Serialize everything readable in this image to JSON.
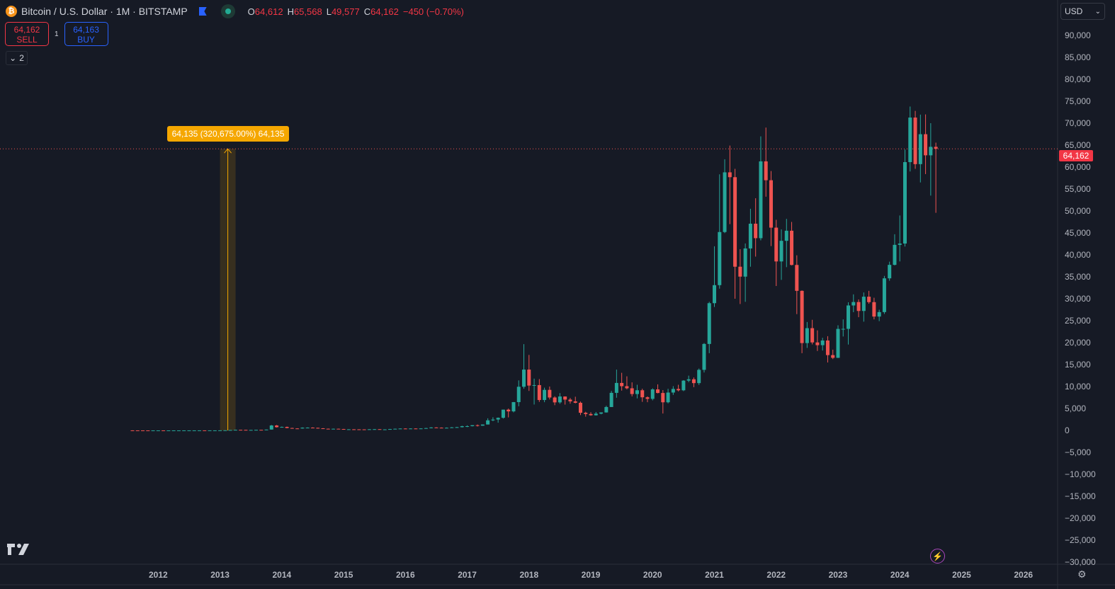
{
  "header": {
    "symbol_icon": "bitcoin-icon",
    "title": "Bitcoin / U.S. Dollar · 1M · BITSTAMP",
    "ohlc": {
      "o_label": "O",
      "o": "64,612",
      "h_label": "H",
      "h": "65,568",
      "l_label": "L",
      "l": "49,577",
      "c_label": "C",
      "c": "64,162",
      "change": "−450 (−0.70%)"
    }
  },
  "trade": {
    "sell_price": "64,162",
    "sell_label": "SELL",
    "quantity": "1",
    "buy_price": "64,163",
    "buy_label": "BUY"
  },
  "indicators_toggle": {
    "count": "2"
  },
  "currency": {
    "selected": "USD"
  },
  "measure_label": "64,135 (320,675.00%) 64,135",
  "last_price": "64,162",
  "colors": {
    "up": "#26a69a",
    "down": "#ef5350",
    "background": "#161a25",
    "measure": "#f5a700"
  },
  "chart_data": {
    "type": "candlestick",
    "interval": "1M",
    "start": "2011-08",
    "ylim": [
      -30000,
      90000
    ],
    "y_ticks": [
      90000,
      85000,
      80000,
      75000,
      70000,
      65000,
      60000,
      55000,
      50000,
      45000,
      40000,
      35000,
      30000,
      25000,
      20000,
      15000,
      10000,
      5000,
      0,
      -5000,
      -10000,
      -15000,
      -20000,
      -25000,
      -30000
    ],
    "y_tick_labels": [
      "90,000",
      "85,000",
      "80,000",
      "75,000",
      "70,000",
      "65,000",
      "60,000",
      "55,000",
      "50,000",
      "45,000",
      "40,000",
      "35,000",
      "30,000",
      "25,000",
      "20,000",
      "15,000",
      "10,000",
      "5,000",
      "0",
      "−5,000",
      "−10,000",
      "−15,000",
      "−20,000",
      "−25,000",
      "−30,000"
    ],
    "x_ticks": [
      "2012",
      "2013",
      "2014",
      "2015",
      "2016",
      "2017",
      "2018",
      "2019",
      "2020",
      "2021",
      "2022",
      "2023",
      "2024",
      "2025",
      "2026"
    ],
    "first_open": 10,
    "closes": [
      8.2,
      5.1,
      3.2,
      3.0,
      4.7,
      5.5,
      4.9,
      4.9,
      5.0,
      5.2,
      6.7,
      9.3,
      10.2,
      12.4,
      11.2,
      12.6,
      13.5,
      20,
      33,
      93,
      139,
      129,
      97,
      106,
      135,
      133,
      198,
      1130,
      732,
      800,
      550,
      450,
      445,
      630,
      640,
      585,
      480,
      385,
      338,
      378,
      320,
      217,
      254,
      244,
      236,
      230,
      263,
      284,
      230,
      236,
      314,
      377,
      430,
      368,
      437,
      416,
      448,
      531,
      673,
      624,
      575,
      609,
      698,
      742,
      963,
      970,
      1190,
      1080,
      1348,
      2300,
      2480,
      2875,
      4735,
      4340,
      6450,
      9950,
      13860,
      10220,
      10330,
      6930,
      9240,
      7500,
      6390,
      7730,
      7030,
      6620,
      6300,
      4020,
      3740,
      3450,
      3820,
      4100,
      5330,
      8560,
      10820,
      10080,
      9600,
      8290,
      9150,
      7550,
      7190,
      9350,
      8530,
      6410,
      8630,
      9450,
      9140,
      11350,
      11650,
      10780,
      13800,
      19700,
      28990,
      33100,
      45200,
      58800,
      57700,
      37300,
      35040,
      41460,
      47100,
      43800,
      61300,
      57000,
      46200,
      38500,
      43200,
      45500,
      37700,
      31800,
      19900,
      23300,
      20050,
      19420,
      20490,
      17160,
      16540,
      23130,
      23140,
      28470,
      29250,
      27220,
      30470,
      29230,
      25940,
      26960,
      34650,
      37720,
      42280,
      42580,
      61130,
      71280,
      60670,
      67490,
      62680,
      64612,
      64162
    ],
    "highs_from_2017": [
      1150,
      1200,
      1350,
      1350,
      2760,
      3000,
      2950,
      4750,
      4980,
      6480,
      11400,
      19660,
      17200,
      11800,
      11700,
      9750,
      10000,
      7780,
      8500,
      7760,
      7400,
      7680,
      6580,
      4250,
      4150,
      4200,
      4120,
      5620,
      9000,
      13860,
      13130,
      12330,
      10950,
      10400,
      9500,
      7750,
      9600,
      10500,
      9190,
      9480,
      10080,
      10400,
      11450,
      12480,
      12070,
      14100,
      19900,
      29300,
      41950,
      58350,
      61780,
      64900,
      59600,
      41300,
      42600,
      50500,
      52900,
      67000,
      69000,
      59100,
      47990,
      45800,
      48200,
      47500,
      39900,
      31900,
      24700,
      25200,
      22800,
      21100,
      21470,
      18400,
      23950,
      25300,
      29200,
      31000,
      29850,
      31430,
      31800,
      30230,
      27500,
      35200,
      38450,
      44700,
      48970,
      64000,
      73800,
      72800,
      71950,
      72000,
      70000,
      65568
    ],
    "lows_from_2017": [
      750,
      920,
      890,
      1060,
      1350,
      2100,
      1760,
      2700,
      2970,
      4110,
      5500,
      9500,
      9000,
      5900,
      6500,
      6430,
      7050,
      5750,
      6070,
      5880,
      6100,
      6170,
      3500,
      3130,
      3350,
      3390,
      3670,
      4060,
      5330,
      7450,
      9070,
      9350,
      7750,
      7300,
      6510,
      6430,
      6850,
      8450,
      3850,
      6160,
      8100,
      8900,
      8950,
      10990,
      9860,
      10370,
      13200,
      17600,
      28130,
      32300,
      44950,
      47000,
      30000,
      28800,
      29300,
      37300,
      39600,
      43300,
      53250,
      42000,
      32900,
      34300,
      37200,
      37600,
      26500,
      17600,
      18800,
      19600,
      18100,
      18200,
      15480,
      16250,
      16500,
      21400,
      19570,
      26940,
      25800,
      24780,
      28860,
      25300,
      24900,
      26540,
      34100,
      37600,
      38500,
      41900,
      59000,
      59600,
      56500,
      58400,
      53500,
      49577
    ]
  }
}
